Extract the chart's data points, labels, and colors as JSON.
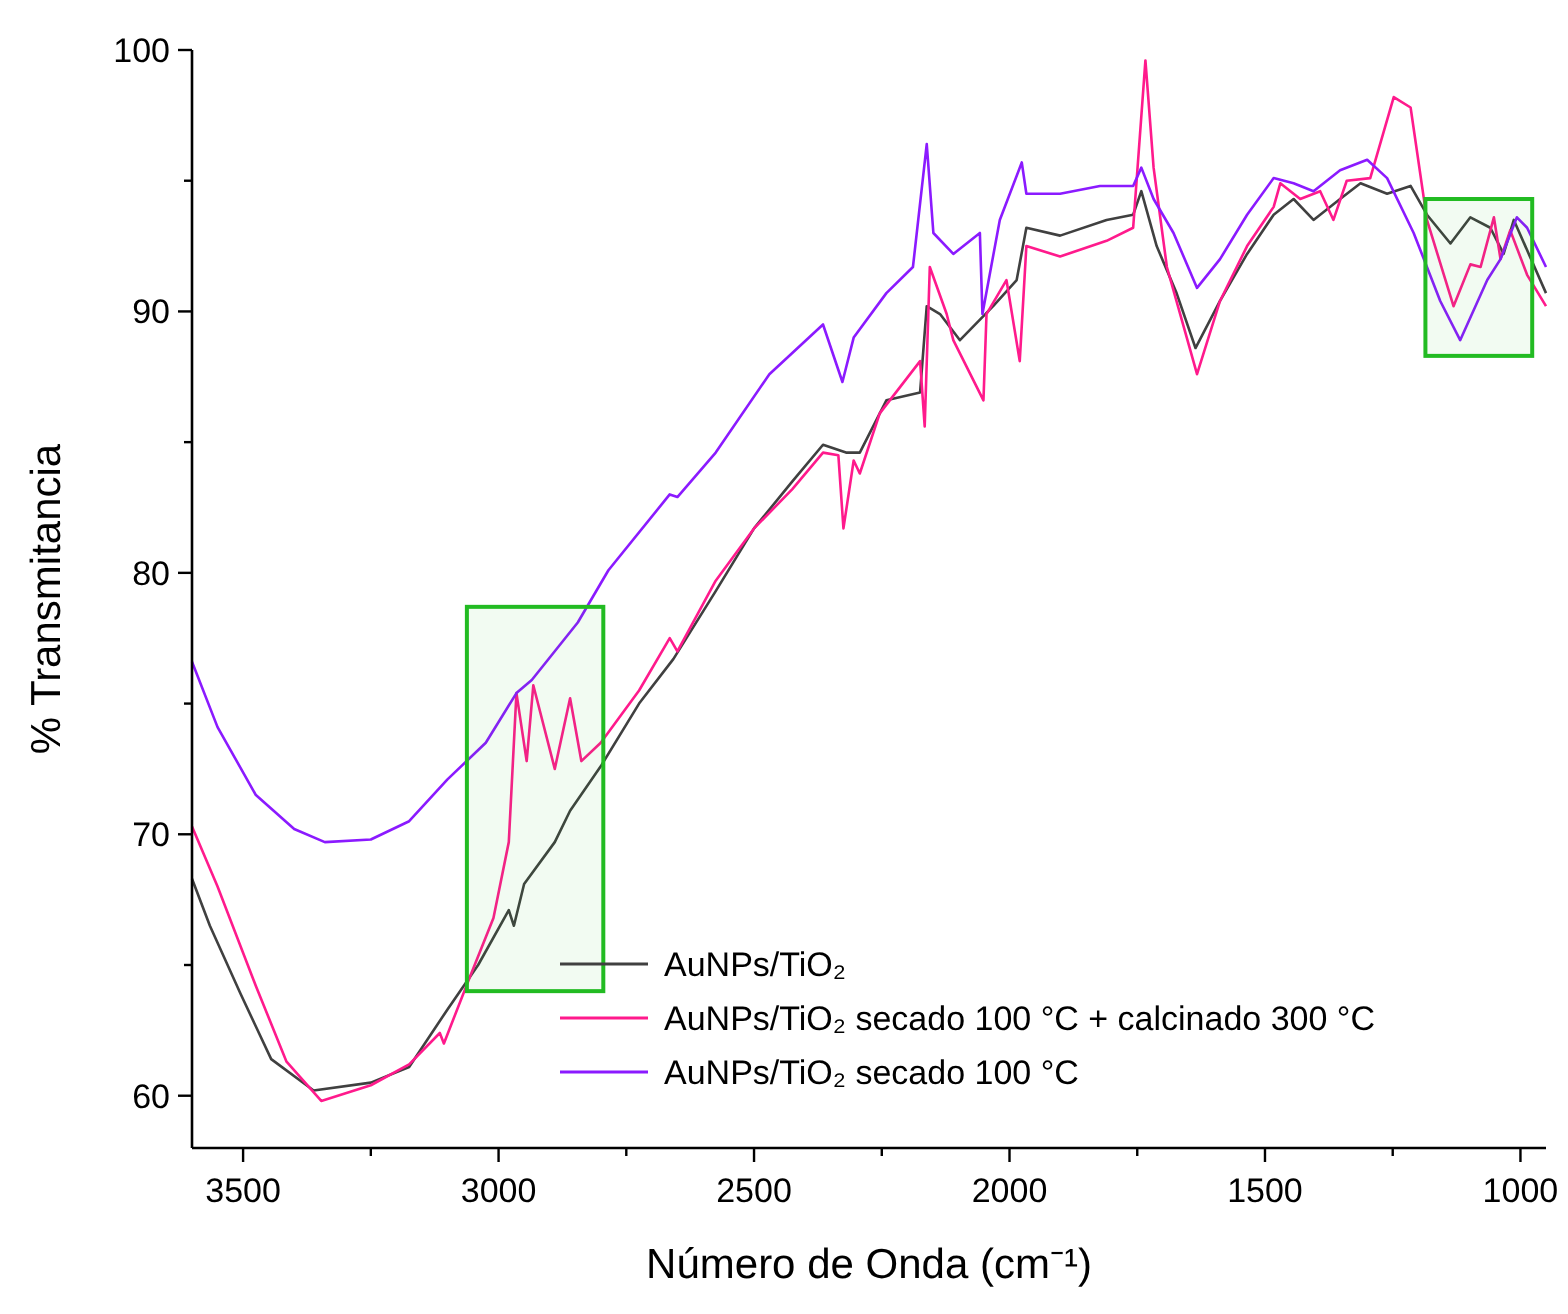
{
  "chart_data": {
    "type": "line",
    "xlabel": "Número de Onda (cm⁻¹)",
    "ylabel": "% Transmitancia",
    "xlim": [
      3600,
      950
    ],
    "ylim": [
      58,
      100
    ],
    "xticks": [
      3500,
      {
        "value": 3250,
        "label": null
      },
      3000,
      {
        "value": 2750,
        "label": null
      },
      2500,
      {
        "value": 2250,
        "label": null
      },
      2000,
      {
        "value": 1750,
        "label": null
      },
      1500,
      {
        "value": 1250,
        "label": null
      },
      1000
    ],
    "yticks": [
      60,
      {
        "value": 65,
        "label": null
      },
      70,
      {
        "value": 75,
        "label": null
      },
      80,
      {
        "value": 85,
        "label": null
      },
      90,
      {
        "value": 95,
        "label": null
      },
      100
    ],
    "grid": false,
    "legend": "bottom right",
    "line_style": "solid",
    "marker": "none",
    "bands": [
      {
        "axis": "x",
        "from": 3062,
        "to": 2795,
        "color": "#22bb22"
      },
      {
        "axis": "x",
        "from": 1186,
        "to": 977,
        "color": "#22bb22"
      }
    ],
    "series": [
      {
        "name": "AuNPs/TiO₂",
        "color": "#404040",
        "x": [
          3600,
          3565,
          3505,
          3445,
          3362,
          3250,
          3175,
          3100,
          3040,
          2980,
          2970,
          2950,
          2890,
          2860,
          2800,
          2725,
          2658,
          2575,
          2500,
          2425,
          2365,
          2320,
          2293,
          2241,
          2175,
          2162,
          2136,
          2097,
          2032,
          1986,
          1967,
          1901,
          1810,
          1758,
          1742,
          1712,
          1673,
          1636,
          1588,
          1535,
          1483,
          1444,
          1405,
          1353,
          1313,
          1261,
          1215,
          1183,
          1137,
          1098,
          1059,
          1033,
          1013,
          950
        ],
        "values": [
          68.3,
          66.5,
          63.9,
          61.4,
          60.2,
          60.5,
          61.1,
          63.3,
          65.0,
          67.1,
          66.5,
          68.1,
          69.7,
          70.9,
          72.6,
          75.0,
          76.7,
          79.3,
          81.7,
          83.5,
          84.9,
          84.6,
          84.6,
          86.6,
          86.9,
          90.2,
          89.9,
          88.9,
          90.2,
          91.2,
          93.2,
          92.9,
          93.5,
          93.7,
          94.6,
          92.5,
          90.7,
          88.6,
          90.4,
          92.2,
          93.7,
          94.3,
          93.5,
          94.3,
          94.9,
          94.5,
          94.8,
          93.7,
          92.6,
          93.6,
          93.2,
          92.2,
          93.5,
          90.7
        ]
      },
      {
        "name": "AuNPs/TiO₂ secado 100 °C + calcinado 300 °C",
        "color": "#ff1a8c",
        "x": [
          3600,
          3550,
          3475,
          3415,
          3347,
          3250,
          3175,
          3115,
          3107,
          3055,
          3010,
          2980,
          2965,
          2945,
          2932,
          2890,
          2860,
          2838,
          2800,
          2725,
          2665,
          2650,
          2575,
          2500,
          2425,
          2365,
          2335,
          2325,
          2305,
          2293,
          2254,
          2175,
          2166,
          2156,
          2123,
          2110,
          2051,
          2045,
          2006,
          1980,
          1967,
          1901,
          1810,
          1758,
          1734,
          1718,
          1692,
          1666,
          1633,
          1588,
          1535,
          1483,
          1470,
          1431,
          1392,
          1366,
          1340,
          1294,
          1248,
          1215,
          1183,
          1131,
          1098,
          1078,
          1052,
          1039,
          1020,
          987,
          950
        ],
        "values": [
          70.3,
          68.0,
          64.2,
          61.3,
          59.8,
          60.4,
          61.2,
          62.4,
          62.0,
          64.6,
          66.8,
          69.7,
          75.4,
          72.8,
          75.7,
          72.5,
          75.2,
          72.8,
          73.5,
          75.5,
          77.5,
          77.0,
          79.7,
          81.7,
          83.2,
          84.6,
          84.5,
          81.7,
          84.3,
          83.8,
          86.1,
          88.1,
          85.6,
          91.7,
          89.9,
          88.9,
          86.6,
          89.9,
          91.2,
          88.1,
          92.5,
          92.1,
          92.7,
          93.2,
          99.6,
          95.5,
          91.7,
          89.9,
          87.6,
          90.4,
          92.5,
          94.0,
          94.9,
          94.3,
          94.6,
          93.5,
          95.0,
          95.1,
          98.2,
          97.8,
          93.5,
          90.2,
          91.8,
          91.7,
          93.6,
          92.0,
          93.1,
          91.4,
          90.2
        ]
      },
      {
        "name": "AuNPs/TiO₂ secado 100 °C",
        "color": "#8b1aff",
        "x": [
          3600,
          3550,
          3475,
          3400,
          3340,
          3250,
          3175,
          3100,
          3025,
          2965,
          2935,
          2845,
          2785,
          2665,
          2650,
          2575,
          2470,
          2365,
          2327,
          2305,
          2241,
          2189,
          2162,
          2149,
          2110,
          2058,
          2053,
          2019,
          1976,
          1967,
          1901,
          1823,
          1758,
          1742,
          1718,
          1679,
          1633,
          1588,
          1535,
          1483,
          1444,
          1405,
          1353,
          1300,
          1261,
          1209,
          1157,
          1118,
          1065,
          1039,
          1007,
          987,
          950
        ],
        "values": [
          76.6,
          74.1,
          71.5,
          70.2,
          69.7,
          69.8,
          70.5,
          72.1,
          73.5,
          75.4,
          75.9,
          78.1,
          80.1,
          83.0,
          82.9,
          84.6,
          87.6,
          89.5,
          87.3,
          89.0,
          90.7,
          91.7,
          96.4,
          93.0,
          92.2,
          93.0,
          89.9,
          93.5,
          95.7,
          94.5,
          94.5,
          94.8,
          94.8,
          95.5,
          94.3,
          93.0,
          90.9,
          92.0,
          93.7,
          95.1,
          94.9,
          94.6,
          95.4,
          95.8,
          95.1,
          93.0,
          90.4,
          88.9,
          91.2,
          92.0,
          93.6,
          93.2,
          91.7
        ]
      }
    ]
  }
}
